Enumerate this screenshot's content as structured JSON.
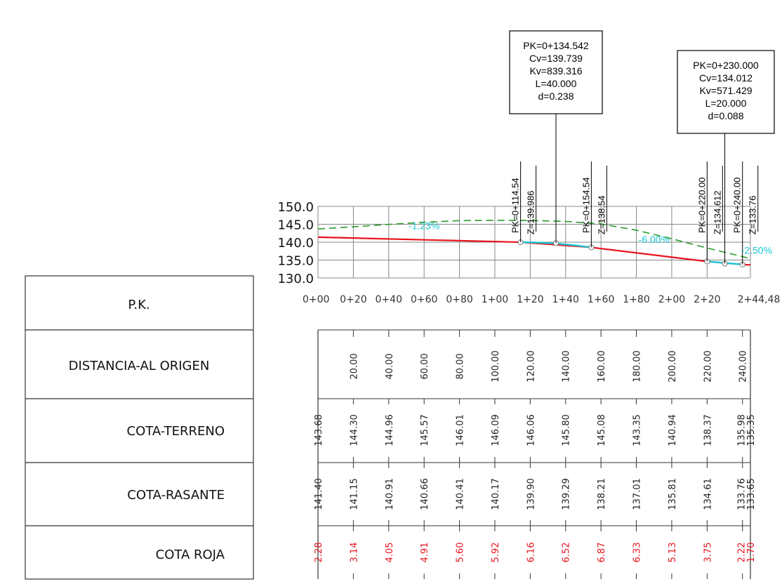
{
  "colors": {
    "terrain": "#2a9d2a",
    "grade": "#e8141e",
    "vcurve": "#19c7d4",
    "slope_label": "#19c7d4",
    "red_values": "#e8141e",
    "grid": "#888888",
    "text": "#111111"
  },
  "row_labels": [
    "P.K.",
    "DISTANCIA-AL ORIGEN",
    "COTA-TERRENO",
    "COTA-RASANTE",
    "COTA ROJA"
  ],
  "elevation_ticks": [
    {
      "value": 150,
      "label": "150.0"
    },
    {
      "value": 145,
      "label": "145.0"
    },
    {
      "value": 140,
      "label": "140.0"
    },
    {
      "value": 135,
      "label": "135.0"
    },
    {
      "value": 130,
      "label": "130.0"
    }
  ],
  "pk_axis_labels": [
    "0+00",
    "0+20",
    "0+40",
    "0+60",
    "0+80",
    "1+00",
    "1+20",
    "1+40",
    "1+60",
    "1+80",
    "2+00",
    "2+20",
    "2+44,48"
  ],
  "stations": [
    0,
    20,
    40,
    60,
    80,
    100,
    120,
    140,
    160,
    180,
    200,
    220,
    240,
    244.48
  ],
  "distances": [
    "20.00",
    "40.00",
    "60.00",
    "80.00",
    "100.00",
    "120.00",
    "140.00",
    "160.00",
    "180.00",
    "200.00",
    "220.00",
    "240.00"
  ],
  "cota_terreno": [
    "143.68",
    "144.30",
    "144.96",
    "145.57",
    "146.01",
    "146.09",
    "146.06",
    "145.80",
    "145.08",
    "143.35",
    "140.94",
    "138.37",
    "135.98",
    "135.35"
  ],
  "cota_rasante": [
    "141.40",
    "141.15",
    "140.91",
    "140.66",
    "140.41",
    "140.17",
    "139.90",
    "139.29",
    "138.21",
    "137.01",
    "135.81",
    "134.61",
    "133.76",
    "133.65"
  ],
  "cota_roja": [
    "2.28",
    "3.14",
    "4.05",
    "4.91",
    "5.60",
    "5.92",
    "6.16",
    "6.52",
    "6.87",
    "6.33",
    "5.13",
    "3.75",
    "2.22",
    "1.70"
  ],
  "terrain_profile": [
    {
      "x": 0,
      "y": 143.68
    },
    {
      "x": 20,
      "y": 144.3
    },
    {
      "x": 40,
      "y": 144.96
    },
    {
      "x": 60,
      "y": 145.57
    },
    {
      "x": 80,
      "y": 146.01
    },
    {
      "x": 100,
      "y": 146.09
    },
    {
      "x": 120,
      "y": 146.06
    },
    {
      "x": 140,
      "y": 145.8
    },
    {
      "x": 160,
      "y": 145.08
    },
    {
      "x": 180,
      "y": 143.35
    },
    {
      "x": 200,
      "y": 140.94
    },
    {
      "x": 220,
      "y": 138.37
    },
    {
      "x": 240,
      "y": 135.98
    },
    {
      "x": 244.48,
      "y": 135.35
    }
  ],
  "grade_profile": [
    {
      "x": 0,
      "y": 141.4
    },
    {
      "x": 114.54,
      "y": 139.986
    },
    {
      "x": 154.54,
      "y": 138.54
    },
    {
      "x": 220,
      "y": 134.612
    },
    {
      "x": 240,
      "y": 133.76
    },
    {
      "x": 244.48,
      "y": 133.65
    }
  ],
  "curve_points": [
    {
      "pk": 114.54,
      "z": 139.986,
      "pk_label": "PK=0+114.54",
      "z_label": "Z=139.986"
    },
    {
      "pk": 154.54,
      "z": 138.54,
      "pk_label": "PK=0+154.54",
      "z_label": "Z=138.54"
    },
    {
      "pk": 220.0,
      "z": 134.612,
      "pk_label": "PK=0+220.00",
      "z_label": "Z=134.612"
    },
    {
      "pk": 240.0,
      "z": 133.76,
      "pk_label": "PK=0+240.00",
      "z_label": "Z=133.76"
    }
  ],
  "vertices": [
    {
      "pk": 134.542,
      "z": 139.739,
      "lines": [
        "PK=0+134.542",
        "Cv=139.739",
        "Kv=839.316",
        "L=40.000",
        "d=0.238"
      ]
    },
    {
      "pk": 230.0,
      "z": 134.012,
      "lines": [
        "PK=0+230.000",
        "Cv=134.012",
        "Kv=571.429",
        "L=20.000",
        "d=0.088"
      ]
    }
  ],
  "slope_labels": [
    {
      "text": "-1.23%",
      "pk": 60,
      "z": 143.6
    },
    {
      "text": "-6.00%",
      "pk": 190,
      "z": 139.8
    },
    {
      "text": "-2.50%",
      "pk": 248,
      "z": 136.8
    }
  ]
}
